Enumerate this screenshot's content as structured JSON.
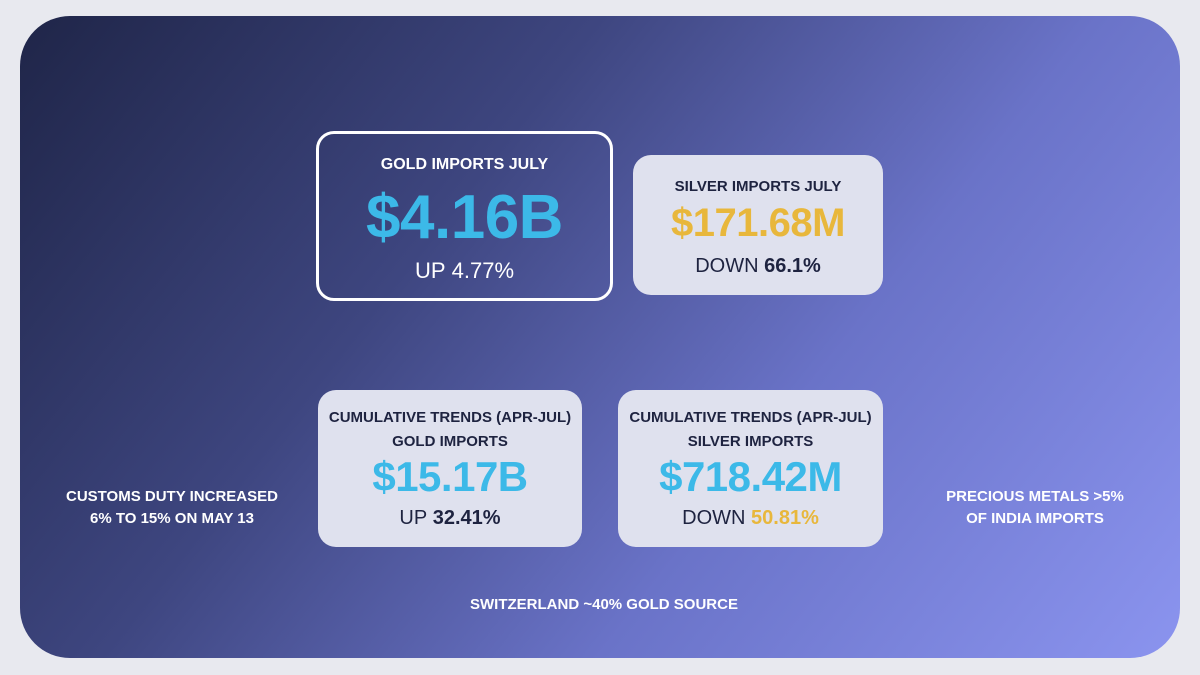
{
  "cards": [
    {
      "title": "GOLD IMPORTS JULY",
      "value": "$4.16B",
      "direction": "UP",
      "change": "4.77%"
    },
    {
      "title": "SILVER IMPORTS JULY",
      "value": "$171.68M",
      "direction": "DOWN",
      "change": "66.1%"
    },
    {
      "title": "CUMULATIVE TRENDS (APR-JUL)",
      "subtitle": "GOLD IMPORTS",
      "value": "$15.17B",
      "direction": "UP",
      "change": "32.41%"
    },
    {
      "title": "CUMULATIVE TRENDS (APR-JUL)",
      "subtitle": "SILVER IMPORTS",
      "value": "$718.42M",
      "direction": "DOWN",
      "change": "50.81%"
    }
  ],
  "notes": [
    {
      "lines": [
        "CUSTOMS DUTY INCREASED",
        "6% TO 15% ON MAY 13"
      ]
    },
    {
      "lines": [
        "PRECIOUS METALS >5%",
        "OF INDIA IMPORTS"
      ]
    },
    {
      "lines": [
        "SWITZERLAND ~40% GOLD SOURCE"
      ]
    }
  ]
}
